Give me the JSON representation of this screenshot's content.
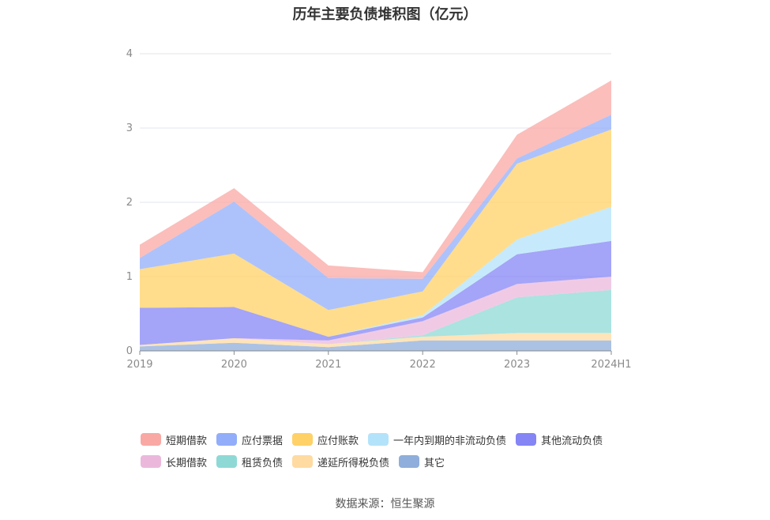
{
  "chart_data": {
    "type": "area",
    "stacked": true,
    "title": "历年主要负债堆积图（亿元）",
    "categories": [
      "2019",
      "2020",
      "2021",
      "2022",
      "2023",
      "2024H1"
    ],
    "yticks": [
      "0",
      "1",
      "2",
      "3",
      "4"
    ],
    "ylim": [
      0,
      4
    ],
    "grid": true,
    "legend_position": "bottom",
    "series": [
      {
        "name": "其它",
        "color": "#8faedb",
        "values": [
          0.06,
          0.11,
          0.05,
          0.14,
          0.14,
          0.14
        ]
      },
      {
        "name": "递延所得税负债",
        "color": "#ffdba1",
        "values": [
          0.02,
          0.06,
          0.04,
          0.05,
          0.1,
          0.1
        ]
      },
      {
        "name": "租赁负债",
        "color": "#8ed9d6",
        "values": [
          0.0,
          0.0,
          0.0,
          0.02,
          0.48,
          0.58
        ]
      },
      {
        "name": "长期借款",
        "color": "#ebb8dc",
        "values": [
          0.0,
          0.0,
          0.05,
          0.19,
          0.18,
          0.18
        ]
      },
      {
        "name": "其他流动负债",
        "color": "#8585f5",
        "values": [
          0.5,
          0.42,
          0.05,
          0.05,
          0.4,
          0.48
        ]
      },
      {
        "name": "一年内到期的非流动负债",
        "color": "#b3e3fa",
        "values": [
          0.0,
          0.0,
          0.0,
          0.03,
          0.2,
          0.46
        ]
      },
      {
        "name": "应付账款",
        "color": "#ffd166",
        "values": [
          0.52,
          0.72,
          0.36,
          0.32,
          1.02,
          1.04
        ]
      },
      {
        "name": "应付票据",
        "color": "#92aefa",
        "values": [
          0.15,
          0.7,
          0.43,
          0.17,
          0.07,
          0.2
        ]
      },
      {
        "name": "短期借款",
        "color": "#f9a8a4",
        "values": [
          0.18,
          0.18,
          0.17,
          0.09,
          0.32,
          0.46
        ]
      }
    ],
    "legend_order": [
      "短期借款",
      "应付票据",
      "应付账款",
      "一年内到期的非流动负债",
      "其他流动负债",
      "长期借款",
      "租赁负债",
      "递延所得税负债",
      "其它"
    ]
  },
  "source_text": "数据来源：恒生聚源"
}
